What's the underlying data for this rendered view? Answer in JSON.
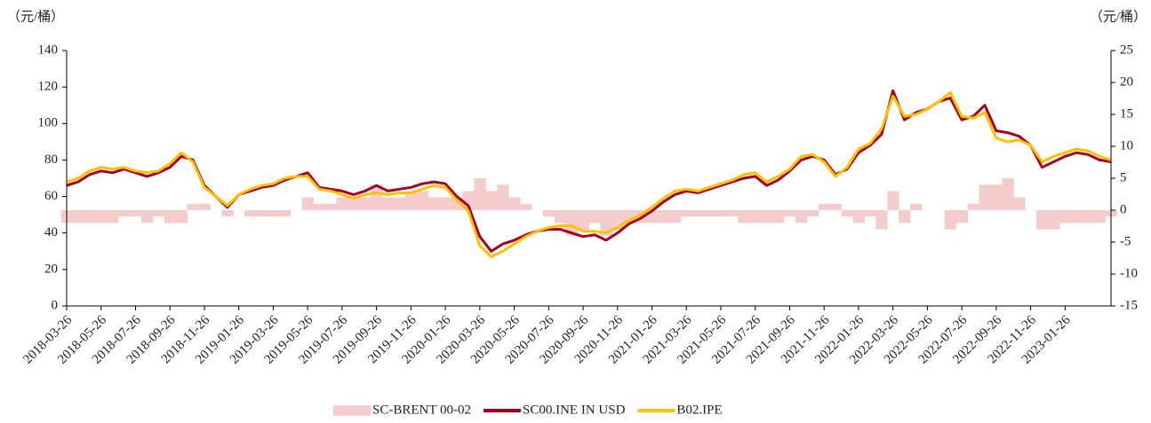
{
  "chart_data": {
    "type": "combo",
    "y_label": "（元/桶）",
    "y2_label": "（元/桶）",
    "categories": [
      "2018-03-26",
      null,
      null,
      "2018-05-26",
      null,
      null,
      "2018-07-26",
      null,
      null,
      "2018-09-26",
      null,
      null,
      "2018-11-26",
      null,
      null,
      "2019-01-26",
      null,
      null,
      "2019-03-26",
      null,
      null,
      "2019-05-26",
      null,
      null,
      "2019-07-26",
      null,
      null,
      "2019-09-26",
      null,
      null,
      "2019-11-26",
      null,
      null,
      "2020-01-26",
      null,
      null,
      "2020-03-26",
      null,
      null,
      "2020-05-26",
      null,
      null,
      "2020-07-26",
      null,
      null,
      "2020-09-26",
      null,
      null,
      "2020-11-26",
      null,
      null,
      "2021-01-26",
      null,
      null,
      "2021-03-26",
      null,
      null,
      "2021-05-26",
      null,
      null,
      "2021-07-26",
      null,
      null,
      "2021-09-26",
      null,
      null,
      "2021-11-26",
      null,
      null,
      "2022-01-26",
      null,
      null,
      "2022-03-26",
      null,
      null,
      "2022-05-26",
      null,
      null,
      "2022-07-26",
      null,
      null,
      "2022-09-26",
      null,
      null,
      "2022-11-26",
      null,
      null,
      "2023-01-26",
      null,
      null,
      null,
      null
    ],
    "series": [
      {
        "name": "SC-BRENT 00-02",
        "type": "bar",
        "axis": "y2",
        "color": "#f4cccc",
        "values": [
          -2,
          -2,
          -2,
          -2,
          -2,
          -1,
          -1,
          -2,
          -1,
          -2,
          -2,
          1,
          1,
          0,
          -1,
          0,
          -1,
          -1,
          -1,
          -1,
          0,
          2,
          1,
          1,
          2,
          2,
          2,
          4,
          2,
          2,
          3,
          3,
          2,
          2,
          2,
          3,
          5,
          3,
          4,
          2,
          1,
          0,
          -1,
          -2,
          -4,
          -3,
          -2,
          -4,
          -3,
          -2,
          -2,
          -2,
          -2,
          -2,
          -1,
          -1,
          -1,
          -1,
          -1,
          -2,
          -2,
          -2,
          -2,
          -1,
          -2,
          -1,
          1,
          1,
          -1,
          -2,
          -1,
          -3,
          3,
          -2,
          1,
          0,
          0,
          -3,
          -2,
          1,
          4,
          4,
          5,
          2,
          0,
          -3,
          -3,
          -2,
          -2,
          -2,
          -2,
          -1
        ]
      },
      {
        "name": "SC00.INE IN USD",
        "type": "line",
        "color": "#a50021",
        "values": [
          66,
          68,
          72,
          74,
          73,
          75,
          73,
          71,
          73,
          76,
          82,
          80,
          66,
          60,
          54,
          61,
          63,
          65,
          66,
          69,
          71,
          73,
          65,
          64,
          63,
          61,
          63,
          66,
          63,
          64,
          65,
          67,
          68,
          67,
          60,
          55,
          38,
          30,
          34,
          36,
          39,
          41,
          42,
          42,
          40,
          38,
          39,
          36,
          40,
          45,
          48,
          52,
          57,
          61,
          63,
          62,
          64,
          66,
          68,
          70,
          71,
          66,
          69,
          74,
          80,
          82,
          80,
          72,
          75,
          84,
          88,
          94,
          118,
          102,
          106,
          108,
          112,
          114,
          102,
          104,
          110,
          96,
          95,
          93,
          88,
          76,
          79,
          82,
          84,
          83,
          80,
          79
        ]
      },
      {
        "name": "B02.IPE",
        "type": "line",
        "color": "#ffc000",
        "values": [
          68,
          70,
          74,
          76,
          75,
          76,
          74,
          73,
          74,
          78,
          84,
          79,
          65,
          60,
          55,
          61,
          64,
          66,
          67,
          70,
          71,
          71,
          64,
          63,
          61,
          59,
          61,
          62,
          61,
          62,
          62,
          64,
          66,
          65,
          58,
          52,
          33,
          27,
          30,
          34,
          38,
          41,
          43,
          44,
          44,
          41,
          41,
          40,
          43,
          47,
          50,
          54,
          59,
          63,
          64,
          63,
          65,
          67,
          69,
          72,
          73,
          68,
          71,
          75,
          82,
          83,
          79,
          71,
          76,
          86,
          89,
          97,
          115,
          104,
          105,
          108,
          112,
          117,
          104,
          103,
          106,
          92,
          90,
          91,
          88,
          79,
          82,
          84,
          86,
          85,
          82,
          80
        ]
      }
    ],
    "ylim": [
      0,
      140
    ],
    "yticks": [
      0,
      20,
      40,
      60,
      80,
      100,
      120,
      140
    ],
    "y2lim": [
      -15,
      25
    ],
    "y2ticks": [
      -15,
      -10,
      -5,
      0,
      5,
      10,
      15,
      20,
      25
    ]
  }
}
